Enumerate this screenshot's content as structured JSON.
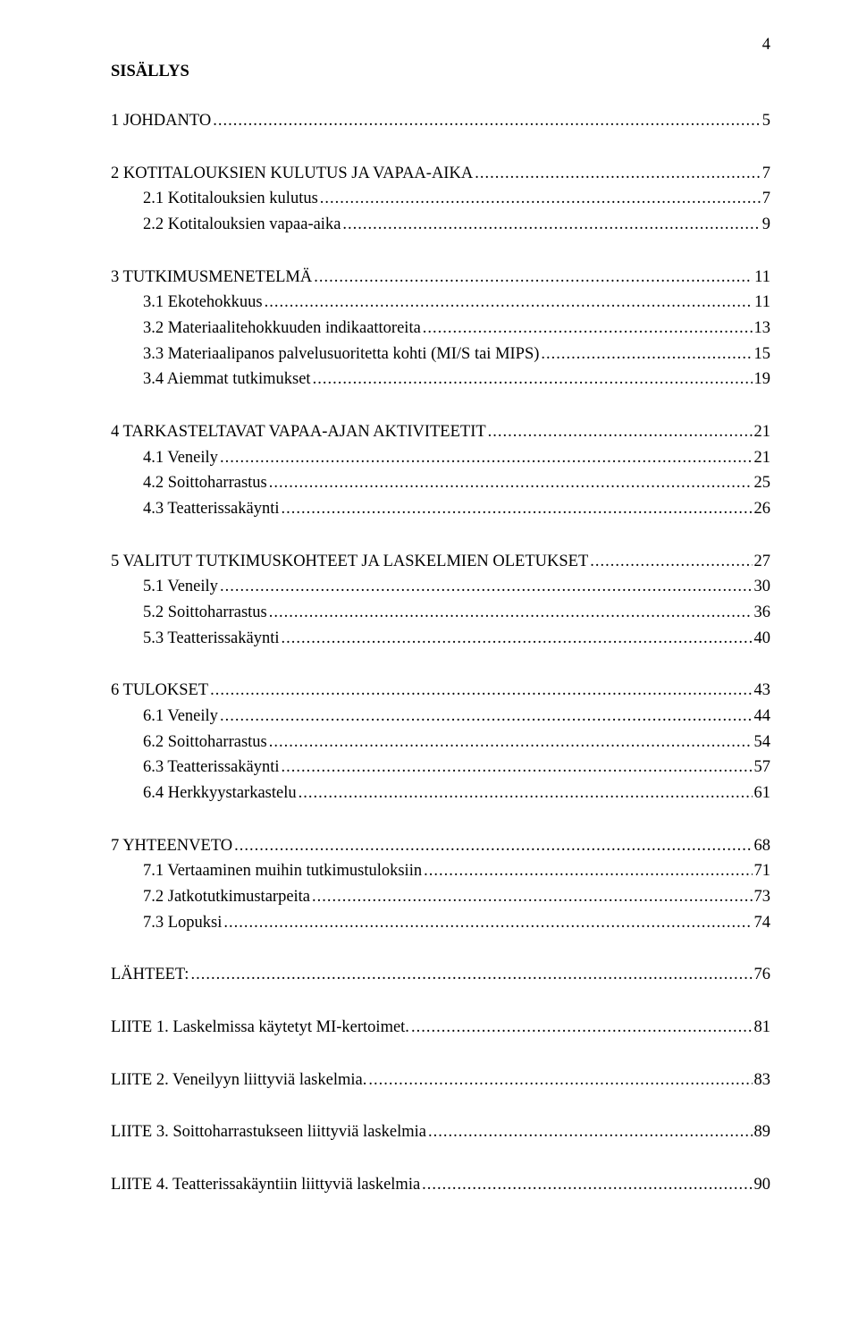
{
  "page_number": "4",
  "title": "SISÄLLYS",
  "groups": [
    {
      "entries": [
        {
          "level": 0,
          "label": "1 JOHDANTO",
          "page": "5"
        }
      ]
    },
    {
      "entries": [
        {
          "level": 0,
          "label": "2 KOTITALOUKSIEN KULUTUS JA VAPAA-AIKA",
          "page": "7"
        },
        {
          "level": 1,
          "label": "2.1 Kotitalouksien kulutus",
          "page": "7"
        },
        {
          "level": 1,
          "label": "2.2 Kotitalouksien vapaa-aika",
          "page": "9"
        }
      ]
    },
    {
      "entries": [
        {
          "level": 0,
          "label": "3 TUTKIMUSMENETELMÄ",
          "page": "11"
        },
        {
          "level": 1,
          "label": "3.1 Ekotehokkuus",
          "page": "11"
        },
        {
          "level": 1,
          "label": "3.2 Materiaalitehokkuuden indikaattoreita",
          "page": "13"
        },
        {
          "level": 1,
          "label": "3.3 Materiaalipanos palvelusuoritetta kohti (MI/S tai MIPS)",
          "page": "15"
        },
        {
          "level": 1,
          "label": "3.4 Aiemmat tutkimukset",
          "page": "19"
        }
      ]
    },
    {
      "entries": [
        {
          "level": 0,
          "label": "4 TARKASTELTAVAT VAPAA-AJAN AKTIVITEETIT",
          "page": "21"
        },
        {
          "level": 1,
          "label": "4.1 Veneily",
          "page": "21"
        },
        {
          "level": 1,
          "label": "4.2 Soittoharrastus",
          "page": "25"
        },
        {
          "level": 1,
          "label": "4.3 Teatterissakäynti",
          "page": "26"
        }
      ]
    },
    {
      "entries": [
        {
          "level": 0,
          "label": "5 VALITUT TUTKIMUSKOHTEET JA LASKELMIEN OLETUKSET",
          "page": "27"
        },
        {
          "level": 1,
          "label": "5.1 Veneily",
          "page": "30"
        },
        {
          "level": 1,
          "label": "5.2 Soittoharrastus",
          "page": "36"
        },
        {
          "level": 1,
          "label": "5.3 Teatterissakäynti",
          "page": "40"
        }
      ]
    },
    {
      "entries": [
        {
          "level": 0,
          "label": "6 TULOKSET",
          "page": "43"
        },
        {
          "level": 1,
          "label": "6.1 Veneily",
          "page": "44"
        },
        {
          "level": 1,
          "label": "6.2 Soittoharrastus",
          "page": "54"
        },
        {
          "level": 1,
          "label": "6.3 Teatterissakäynti",
          "page": "57"
        },
        {
          "level": 1,
          "label": "6.4 Herkkyystarkastelu",
          "page": "61"
        }
      ]
    },
    {
      "entries": [
        {
          "level": 0,
          "label": "7 YHTEENVETO",
          "page": "68"
        },
        {
          "level": 1,
          "label": "7.1 Vertaaminen muihin tutkimustuloksiin",
          "page": "71"
        },
        {
          "level": 1,
          "label": "7.2 Jatkotutkimustarpeita",
          "page": "73"
        },
        {
          "level": 1,
          "label": "7.3 Lopuksi",
          "page": "74"
        }
      ]
    },
    {
      "entries": [
        {
          "level": 0,
          "label": "LÄHTEET:",
          "page": "76"
        }
      ]
    },
    {
      "entries": [
        {
          "level": 0,
          "label": "LIITE 1. Laskelmissa käytetyt MI-kertoimet.",
          "page": "81"
        }
      ]
    },
    {
      "entries": [
        {
          "level": 0,
          "label": "LIITE 2. Veneilyyn liittyviä laskelmia.",
          "page": "83"
        }
      ]
    },
    {
      "entries": [
        {
          "level": 0,
          "label": "LIITE 3. Soittoharrastukseen liittyviä laskelmia",
          "page": "89"
        }
      ]
    },
    {
      "entries": [
        {
          "level": 0,
          "label": "LIITE 4. Teatterissakäyntiin liittyviä laskelmia",
          "page": "90"
        }
      ]
    }
  ]
}
